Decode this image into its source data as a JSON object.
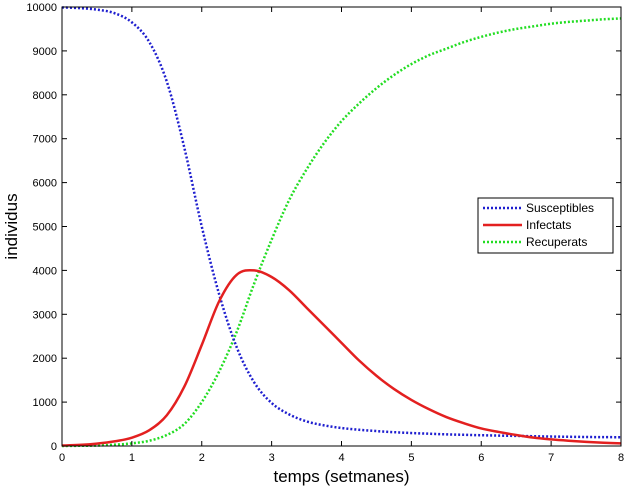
{
  "chart_data": {
    "type": "line",
    "title": "",
    "xlabel": "temps (setmanes)",
    "ylabel": "individus",
    "xlim": [
      0,
      8
    ],
    "ylim": [
      0,
      10000
    ],
    "xticks": [
      0,
      1,
      2,
      3,
      4,
      5,
      6,
      7,
      8
    ],
    "yticks": [
      0,
      1000,
      2000,
      3000,
      4000,
      5000,
      6000,
      7000,
      8000,
      9000,
      10000
    ],
    "grid": false,
    "legend_position": "right",
    "x": [
      0,
      0.25,
      0.5,
      0.75,
      1,
      1.25,
      1.5,
      1.75,
      2,
      2.25,
      2.5,
      2.75,
      3,
      3.25,
      3.5,
      3.75,
      4,
      4.25,
      4.5,
      4.75,
      5,
      5.25,
      5.5,
      5.75,
      6,
      6.25,
      6.5,
      6.75,
      7,
      7.25,
      7.5,
      7.75,
      8
    ],
    "series": [
      {
        "name": "Susceptibles",
        "color": "#1f1fcf",
        "style": "dotted",
        "values": [
          9990,
          9975,
          9940,
          9860,
          9650,
          9200,
          8300,
          6800,
          5000,
          3450,
          2250,
          1450,
          980,
          720,
          560,
          470,
          410,
          370,
          340,
          315,
          295,
          280,
          265,
          255,
          245,
          237,
          230,
          222,
          215,
          210,
          205,
          202,
          200
        ]
      },
      {
        "name": "Infectats",
        "color": "#e32020",
        "style": "solid",
        "values": [
          10,
          25,
          55,
          105,
          190,
          360,
          700,
          1350,
          2300,
          3300,
          3900,
          4000,
          3850,
          3550,
          3150,
          2750,
          2350,
          1950,
          1600,
          1300,
          1050,
          840,
          660,
          520,
          400,
          320,
          250,
          190,
          150,
          120,
          95,
          75,
          60
        ]
      },
      {
        "name": "Recuperats",
        "color": "#22dd22",
        "style": "dotted",
        "values": [
          0,
          5,
          10,
          30,
          60,
          120,
          250,
          500,
          1000,
          1700,
          2600,
          3700,
          4700,
          5600,
          6300,
          6900,
          7400,
          7800,
          8150,
          8450,
          8700,
          8900,
          9050,
          9200,
          9320,
          9420,
          9500,
          9560,
          9620,
          9660,
          9690,
          9720,
          9740
        ]
      }
    ]
  }
}
